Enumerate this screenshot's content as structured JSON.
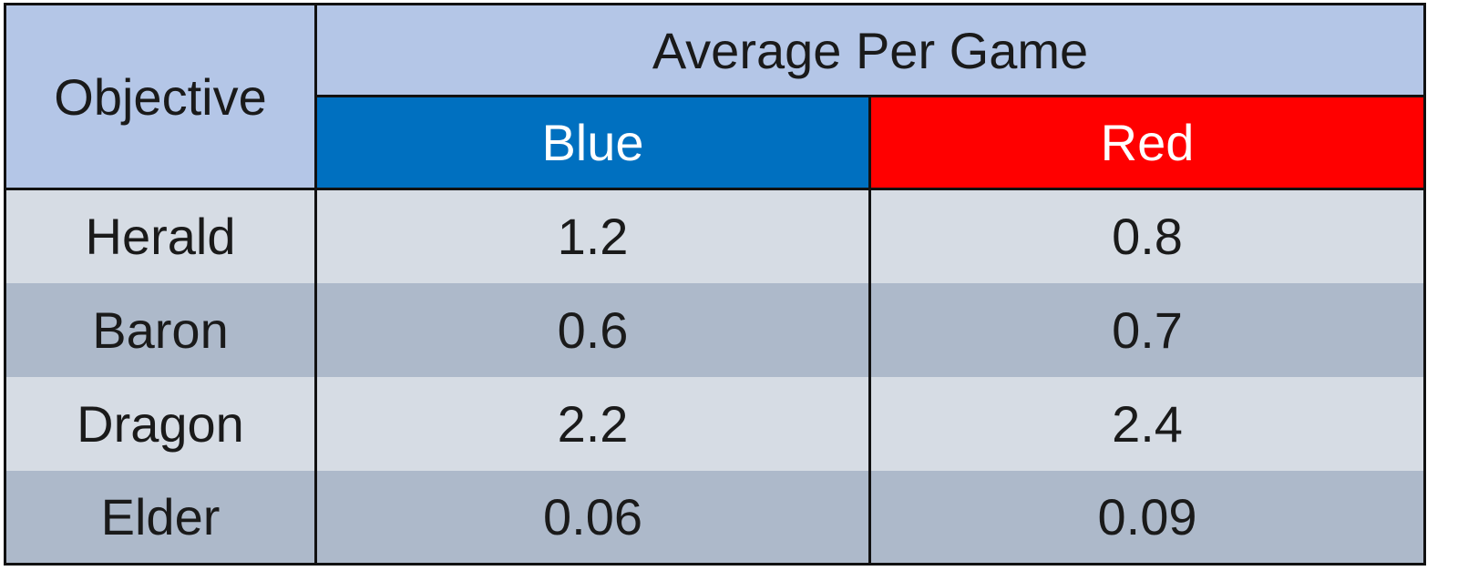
{
  "table": {
    "header": {
      "objective": "Objective",
      "group": "Average Per Game",
      "columns": [
        "Blue",
        "Red"
      ]
    },
    "rows": [
      [
        "Herald",
        "1.2",
        "0.8"
      ],
      [
        "Baron",
        "0.6",
        "0.7"
      ],
      [
        "Dragon",
        "2.2",
        "2.4"
      ],
      [
        "Elder",
        "0.06",
        "0.09"
      ]
    ]
  }
}
